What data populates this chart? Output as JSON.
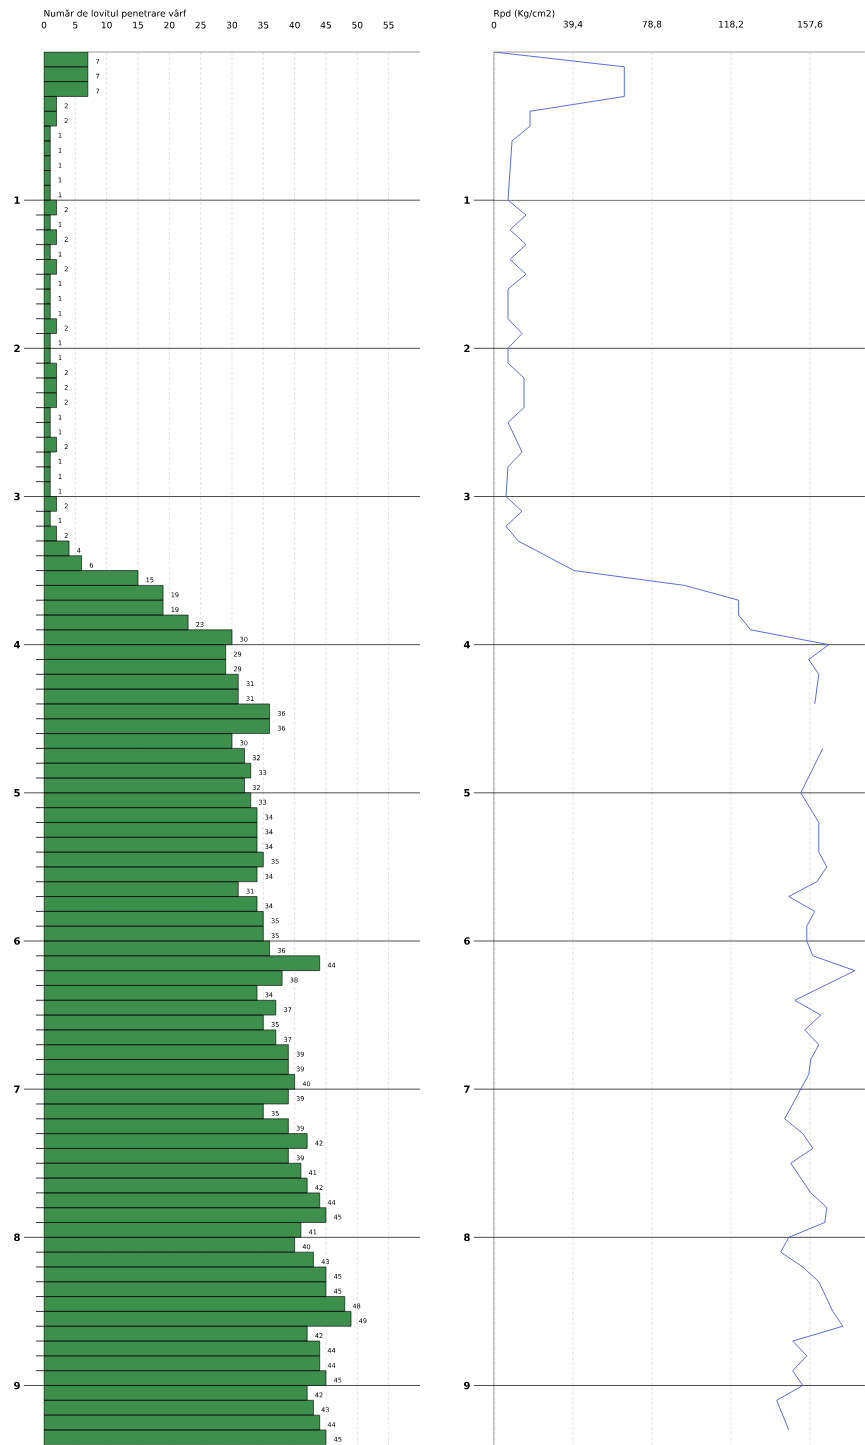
{
  "chart_data": [
    {
      "type": "bar",
      "orientation": "horizontal",
      "xlabel": "Număr de lovitul penetrare vârf",
      "color": "#3e8e4e",
      "data_labels": true,
      "grid": true,
      "x": [
        0.05,
        0.15,
        0.25,
        0.35,
        0.45,
        0.55,
        0.65,
        0.75,
        0.85,
        0.95,
        1.05,
        1.15,
        1.25,
        1.35,
        1.45,
        1.55,
        1.65,
        1.75,
        1.85,
        1.95,
        2.05,
        2.15,
        2.25,
        2.35,
        2.45,
        2.55,
        2.65,
        2.75,
        2.85,
        2.95,
        3.05,
        3.15,
        3.25,
        3.35,
        3.45,
        3.55,
        3.65,
        3.75,
        3.85,
        3.95,
        4.05,
        4.15,
        4.25,
        4.35,
        4.45,
        4.55,
        4.65,
        4.75,
        4.85,
        4.95,
        5.05,
        5.15,
        5.25,
        5.35,
        5.45,
        5.55,
        5.65,
        5.75,
        5.85,
        5.95,
        6.05,
        6.15,
        6.25,
        6.35,
        6.45,
        6.55,
        6.65,
        6.75,
        6.85,
        6.95,
        7.05,
        7.15,
        7.25,
        7.35,
        7.45,
        7.55,
        7.65,
        7.75,
        7.85,
        7.95,
        8.05,
        8.15,
        8.25,
        8.35,
        8.45,
        8.55,
        8.65,
        8.75,
        8.85,
        8.95,
        9.05,
        9.15,
        9.25,
        9.35
      ],
      "values": [
        7,
        7,
        7,
        2,
        2,
        1,
        1,
        1,
        1,
        1,
        2,
        1,
        2,
        1,
        2,
        1,
        1,
        1,
        2,
        1,
        1,
        2,
        2,
        2,
        1,
        1,
        2,
        1,
        1,
        1,
        2,
        1,
        2,
        4,
        6,
        15,
        19,
        19,
        23,
        30,
        29,
        29,
        31,
        31,
        36,
        36,
        30,
        32,
        33,
        32,
        33,
        34,
        34,
        34,
        35,
        34,
        31,
        34,
        35,
        35,
        36,
        44,
        38,
        34,
        37,
        35,
        37,
        39,
        39,
        40,
        39,
        35,
        39,
        42,
        39,
        41,
        42,
        44,
        45,
        41,
        40,
        43,
        45,
        45,
        48,
        49,
        42,
        44,
        44,
        45,
        42,
        43,
        44,
        45
      ],
      "xlim": [
        0,
        60
      ],
      "xticks": [
        0,
        5,
        10,
        15,
        20,
        25,
        30,
        35,
        40,
        45,
        50,
        55
      ],
      "ylim": [
        9.4,
        0
      ],
      "yticks": [
        1,
        2,
        3,
        4,
        5,
        6,
        7,
        8,
        9
      ]
    },
    {
      "type": "line",
      "orientation": "horizontal",
      "xlabel": "Rpd (Kg/cm2)",
      "grid": true,
      "series": [
        {
          "color": "#4a5ed2",
          "x": [
            0,
            0.1,
            0.3,
            0.4,
            0.5,
            0.6,
            1.0,
            1.1,
            1.2,
            1.3,
            1.4,
            1.5,
            1.6,
            1.8,
            1.9,
            2.0,
            2.1,
            2.2,
            2.4,
            2.5,
            2.7,
            2.8,
            3.0,
            3.1,
            3.2,
            3.3,
            3.5,
            3.6,
            3.7,
            3.8,
            3.9,
            4.0,
            4.1,
            4.2,
            4.4,
            4.5,
            4.6,
            4.7,
            5.0,
            5.2,
            5.4,
            5.5,
            5.6,
            5.7,
            5.8,
            5.9,
            6.0,
            6.1,
            6.2,
            6.4,
            6.5,
            6.6,
            6.7,
            6.8,
            6.9,
            7.2,
            7.3,
            7.4,
            7.5,
            7.7,
            7.8,
            7.9,
            8.0,
            8.1,
            8.2,
            8.3,
            8.5,
            8.6,
            8.7,
            8.8,
            8.9,
            9.0,
            9.1,
            9.3
          ],
          "values": [
            0,
            65,
            65,
            18,
            18,
            9,
            7,
            16,
            8,
            16,
            8,
            16,
            7,
            7,
            14,
            7,
            7,
            15,
            15,
            7,
            14,
            7,
            6,
            14,
            6,
            12,
            40,
            95,
            122,
            122,
            128,
            167,
            157,
            162,
            160,
            null,
            null,
            164,
            153,
            162,
            162,
            166,
            161,
            147,
            160,
            156,
            156,
            159,
            180,
            150,
            163,
            155,
            162,
            158,
            157,
            145,
            154,
            159,
            148,
            158,
            166,
            165,
            147,
            143,
            154,
            162,
            169,
            174,
            149,
            156,
            149,
            154,
            141,
            147
          ]
        }
      ],
      "xlim": [
        0,
        185
      ],
      "xticks": [
        0,
        {
          "value": 39.4,
          "label": "39,4"
        },
        {
          "value": 78.8,
          "label": "78,8"
        },
        {
          "value": 118.2,
          "label": "118,2"
        },
        {
          "value": 157.6,
          "label": "157,6"
        }
      ],
      "ylim": [
        9.4,
        0
      ],
      "yticks": [
        1,
        2,
        3,
        4,
        5,
        6,
        7,
        8,
        9
      ]
    }
  ]
}
